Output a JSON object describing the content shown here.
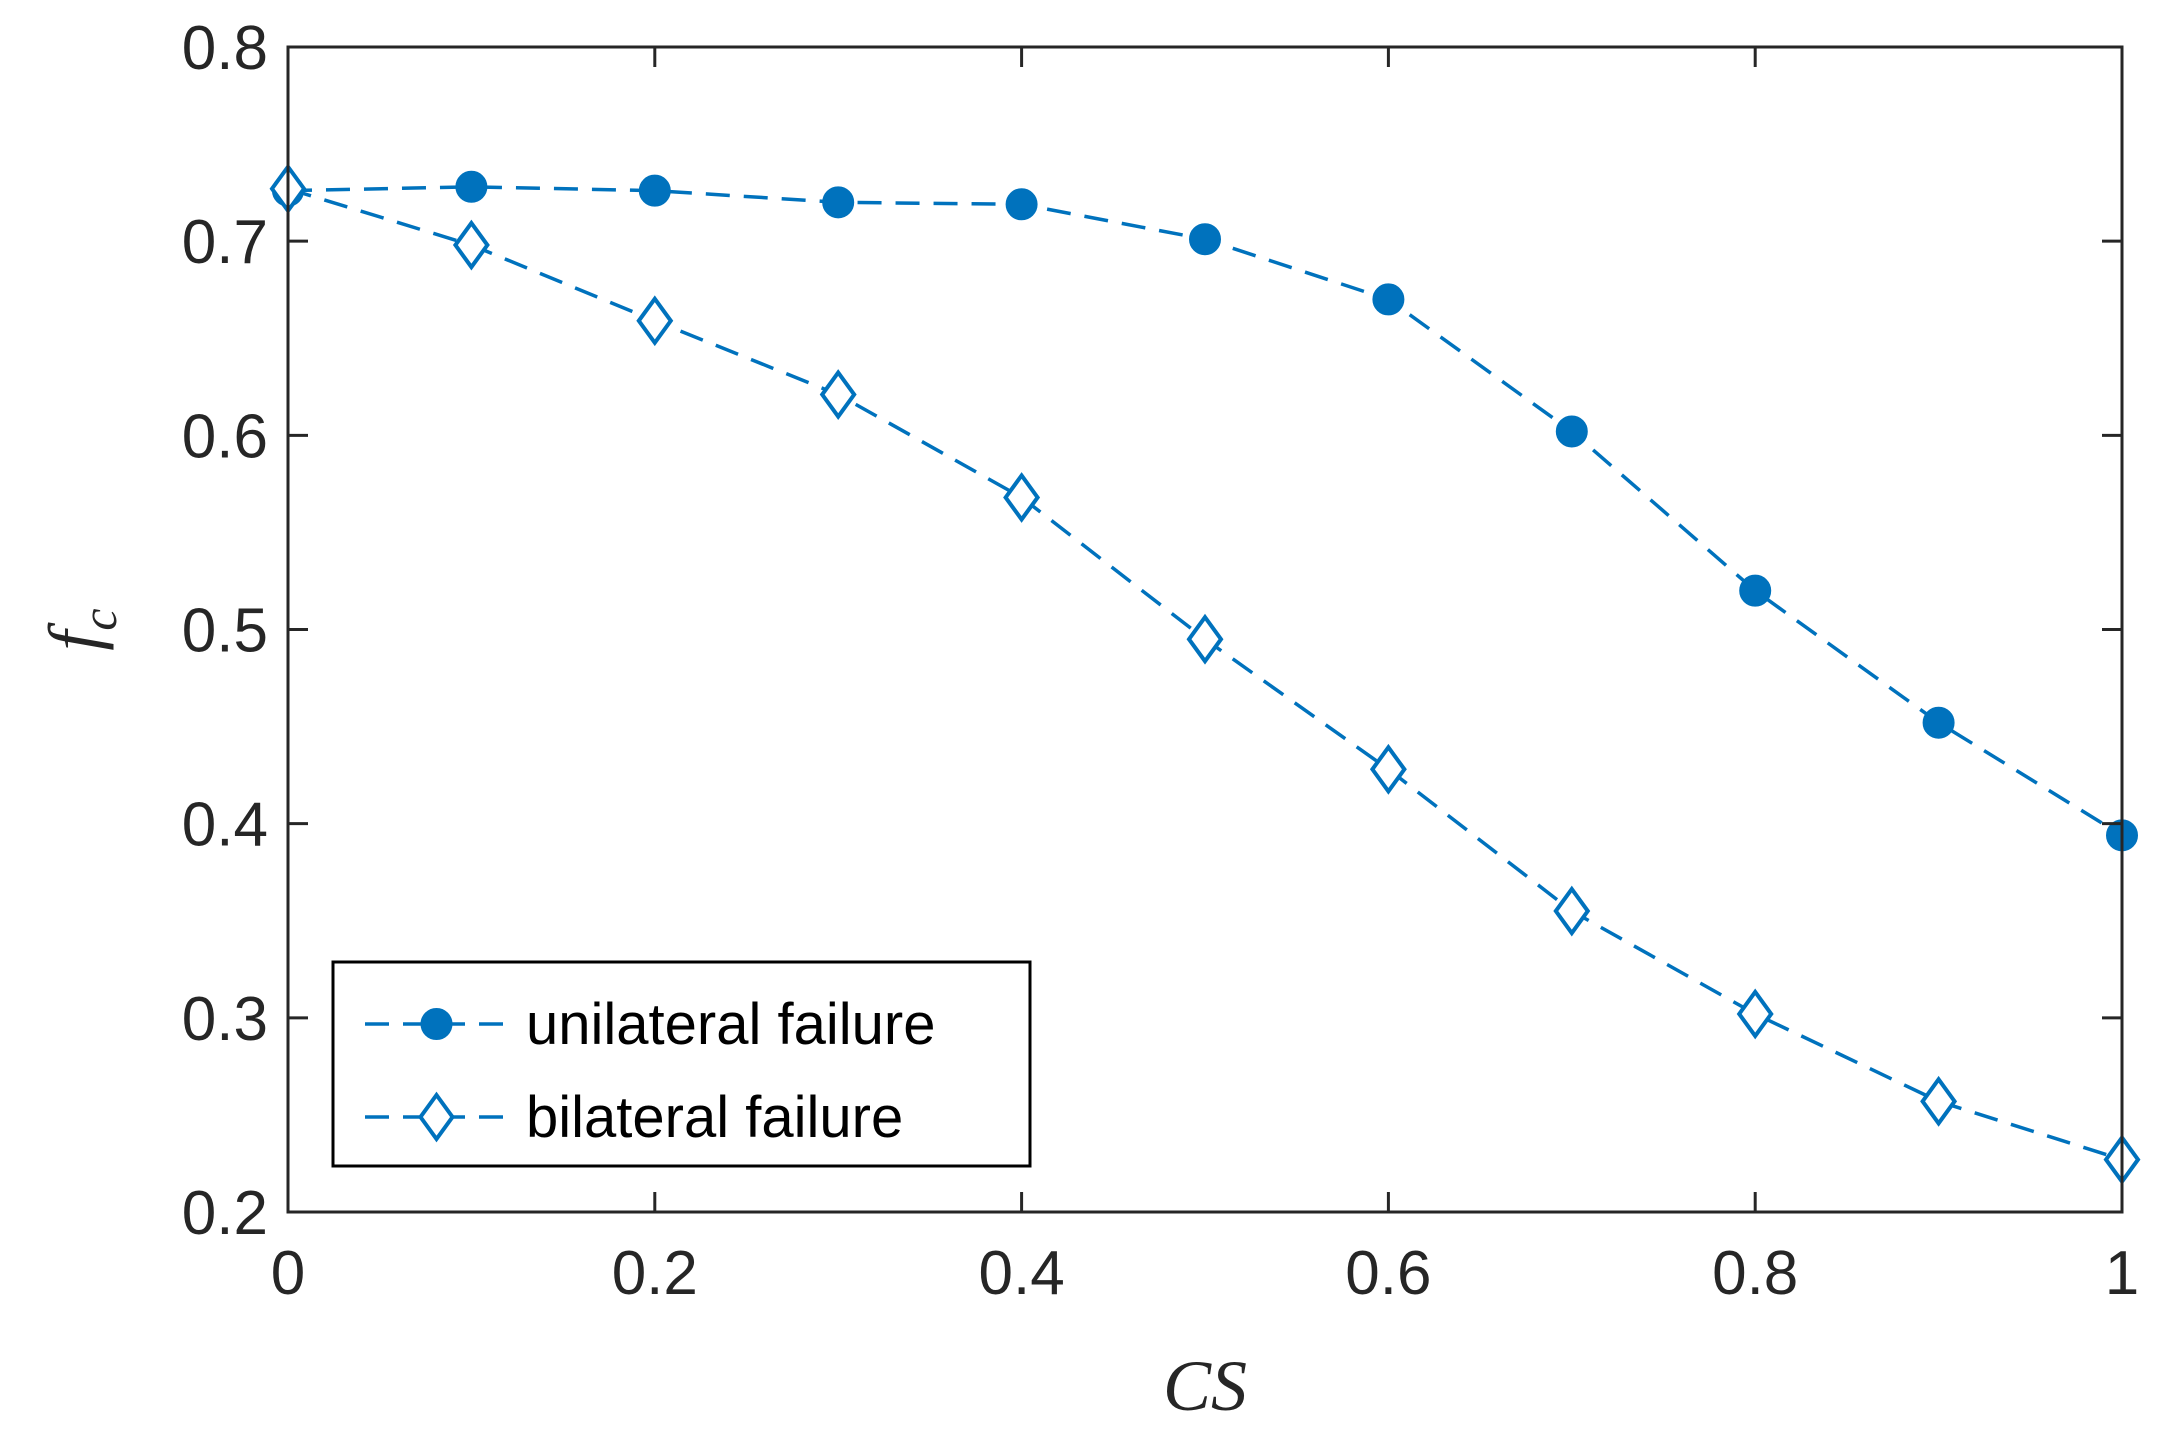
{
  "colors": {
    "series": "#0072BD",
    "axis": "#262626",
    "background": "#ffffff"
  },
  "chart_data": {
    "type": "line",
    "xlabel": "CS",
    "ylabel_main": "f",
    "ylabel_sub": "c",
    "xlim": [
      0,
      1
    ],
    "ylim": [
      0.2,
      0.8
    ],
    "xticks": [
      "0",
      "0.2",
      "0.4",
      "0.6",
      "0.8",
      "1"
    ],
    "xtick_values": [
      0,
      0.2,
      0.4,
      0.6,
      0.8,
      1
    ],
    "yticks": [
      "0.2",
      "0.3",
      "0.4",
      "0.5",
      "0.6",
      "0.7",
      "0.8"
    ],
    "ytick_values": [
      0.2,
      0.3,
      0.4,
      0.5,
      0.6,
      0.7,
      0.8
    ],
    "grid": false,
    "legend_position": "bottom-left",
    "x": [
      0,
      0.1,
      0.2,
      0.3,
      0.4,
      0.5,
      0.6,
      0.7,
      0.8,
      0.9,
      1.0
    ],
    "series": [
      {
        "name": "unilateral failure",
        "marker": "filled-circle",
        "line": "dashed",
        "values": [
          0.726,
          0.728,
          0.726,
          0.72,
          0.719,
          0.701,
          0.67,
          0.602,
          0.52,
          0.452,
          0.394
        ]
      },
      {
        "name": "bilateral failure",
        "marker": "open-diamond",
        "line": "dashed",
        "values": [
          0.727,
          0.698,
          0.659,
          0.621,
          0.568,
          0.495,
          0.428,
          0.355,
          0.302,
          0.257,
          0.227
        ]
      }
    ]
  }
}
